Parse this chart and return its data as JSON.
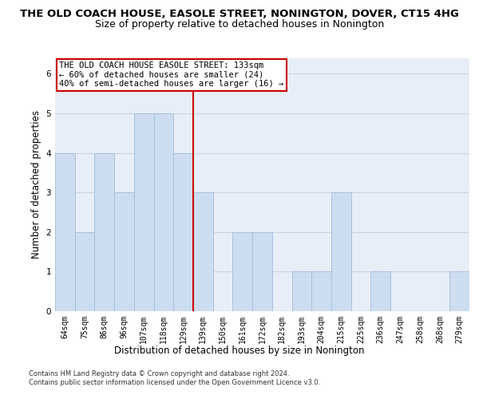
{
  "title": "THE OLD COACH HOUSE, EASOLE STREET, NONINGTON, DOVER, CT15 4HG",
  "subtitle": "Size of property relative to detached houses in Nonington",
  "xlabel": "Distribution of detached houses by size in Nonington",
  "ylabel": "Number of detached properties",
  "categories": [
    "64sqm",
    "75sqm",
    "86sqm",
    "96sqm",
    "107sqm",
    "118sqm",
    "129sqm",
    "139sqm",
    "150sqm",
    "161sqm",
    "172sqm",
    "182sqm",
    "193sqm",
    "204sqm",
    "215sqm",
    "225sqm",
    "236sqm",
    "247sqm",
    "258sqm",
    "268sqm",
    "279sqm"
  ],
  "values": [
    4,
    2,
    4,
    3,
    5,
    5,
    4,
    3,
    0,
    2,
    2,
    0,
    1,
    1,
    3,
    0,
    1,
    0,
    0,
    0,
    1
  ],
  "bar_color": "#ccddf0",
  "bar_edge_color": "#a8c0de",
  "vline_x": 6.5,
  "vline_color": "#cc0000",
  "annotation_text": "THE OLD COACH HOUSE EASOLE STREET: 133sqm\n← 60% of detached houses are smaller (24)\n40% of semi-detached houses are larger (16) →",
  "annotation_box_color": "#ffffff",
  "annotation_box_edge": "#cc0000",
  "ylim": [
    0,
    6.4
  ],
  "yticks": [
    0,
    1,
    2,
    3,
    4,
    5,
    6
  ],
  "grid_color": "#c8d4e8",
  "background_color": "#e8eef8",
  "footer_line1": "Contains HM Land Registry data © Crown copyright and database right 2024.",
  "footer_line2": "Contains public sector information licensed under the Open Government Licence v3.0.",
  "title_fontsize": 9.5,
  "subtitle_fontsize": 9.0,
  "ylabel_fontsize": 8.5,
  "xlabel_fontsize": 8.5,
  "tick_fontsize": 7.0,
  "annotation_fontsize": 7.5,
  "footer_fontsize": 6.0
}
